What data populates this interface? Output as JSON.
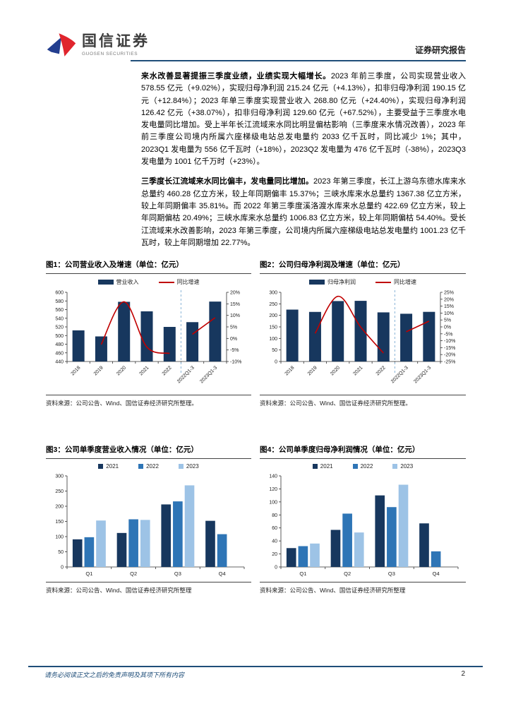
{
  "header": {
    "logo_cn": "国信证券",
    "logo_en": "GUOSEN SECURITIES",
    "report_type": "证券研究报告"
  },
  "colors": {
    "accent_blue": "#1f4e79",
    "logo_blue": "#233e8f",
    "logo_red": "#e0252d",
    "bar_navy": "#17375e",
    "bar_blue": "#2e75b6",
    "bar_light": "#9dc3e6",
    "line_red": "#c00000",
    "separator_blue": "#8ab4d8"
  },
  "body": {
    "para1_lead": "来水改善显著提振三季度业绩，业绩实现大幅增长。",
    "para1_rest": "2023 年前三季度，公司实现营业收入 578.55 亿元（+9.02%），实现归母净利润 215.24 亿元（+4.13%），扣非归母净利润 190.15 亿元（+12.84%）；2023 年单三季度实现营业收入 268.80 亿元（+24.40%），实现归母净利润 126.42 亿元（+38.07%），扣非归母净利润 129.60 亿元（+67.52%），主要受益于三季度水电发电量同比增加。受上半年长江流域来水同比明显偏枯影响（三季度来水情况改善），2023 年前三季度公司境内所属六座梯级电站总发电量约 2033 亿千瓦时，同比减少 1%；其中，2023Q1 发电量为 556 亿千瓦时（+18%），2023Q2 发电量为 476 亿千瓦时（-38%），2023Q3 发电量为 1001 亿千万时（+23%）。",
    "para2_lead": "三季度长江流域来水同比偏丰，发电量同比增加。",
    "para2_rest": "2023 年第三季度，长江上游乌东德水库来水总量约 460.28 亿立方米，较上年同期偏丰 15.37%；三峡水库来水总量约 1367.38 亿立方米，较上年同期偏丰 35.81%。而 2022 年第三季度溪洛渡水库来水总量约 422.69 亿立方米，较上年同期偏枯 20.49%；三峡水库来水总量约 1006.83 亿立方米，较上年同期偏枯 54.40%。受长江流域来水改善影响，2023 年第三季度，公司境内所属六座梯级电站总发电量约 1001.23 亿千瓦时，较上年同期增加 22.77%。"
  },
  "chart_data": [
    {
      "figure_label": "图1：公司营业收入及增速（单位：亿元）",
      "type": "bar",
      "combo": true,
      "categories": [
        "2018",
        "2019",
        "2020",
        "2021",
        "2022",
        "2022Q1-3",
        "2023Q1-3"
      ],
      "bar_series": {
        "name": "营业收入",
        "color": "#17375e",
        "values": [
          512,
          498,
          578,
          556,
          520,
          531,
          578.55
        ]
      },
      "line_series": {
        "name": "同比增速",
        "color": "#c00000",
        "axis": "right",
        "segments": [
          {
            "x": [
              1,
              2,
              3,
              4
            ],
            "y": [
              -2.6,
              15.9,
              -3.7,
              -6.5
            ]
          },
          {
            "x": [
              5,
              6
            ],
            "y": [
              1.8,
              9.02
            ]
          }
        ]
      },
      "y_left": {
        "min": 440,
        "max": 600,
        "step": 20
      },
      "y_right": {
        "min": -10,
        "max": 20,
        "step": 5,
        "suffix": "%"
      },
      "separator_after": 4,
      "rotate_x": true,
      "legend_position": "top",
      "grid": false,
      "source": "资料来源：公司公告、Wind、国信证券经济研究所整理。"
    },
    {
      "figure_label": "图2：公司归母净利润及增速（单位：亿元）",
      "type": "bar",
      "combo": true,
      "categories": [
        "2018",
        "2019",
        "2020",
        "2021",
        "2022",
        "2022Q1-3",
        "2023Q1-3"
      ],
      "bar_series": {
        "name": "归母净利润",
        "color": "#17375e",
        "values": [
          225,
          215,
          262,
          263,
          213,
          207,
          215.24
        ]
      },
      "line_series": {
        "name": "同比增速",
        "color": "#c00000",
        "axis": "right",
        "segments": [
          {
            "x": [
              1,
              2,
              3,
              4
            ],
            "y": [
              -4.7,
              22.1,
              -0.1,
              -18.9
            ]
          },
          {
            "x": [
              5,
              6
            ],
            "y": [
              -3.5,
              4.13
            ]
          }
        ]
      },
      "y_left": {
        "min": 0,
        "max": 300,
        "step": 50
      },
      "y_right": {
        "min": -25,
        "max": 25,
        "step": 5,
        "suffix": "%"
      },
      "separator_after": 4,
      "rotate_x": true,
      "legend_position": "top",
      "grid": false,
      "source": "资料来源：公司公告、Wind、国信证券经济研究所整理。"
    },
    {
      "figure_label": "图3：公司单季度营业收入情况（单位：亿元）",
      "type": "bar",
      "grouped": true,
      "categories": [
        "Q1",
        "Q2",
        "Q3",
        "Q4"
      ],
      "series": [
        {
          "name": "2021",
          "color": "#17375e",
          "values": [
            91,
            112,
            206,
            152
          ]
        },
        {
          "name": "2022",
          "color": "#2e75b6",
          "values": [
            98,
            157,
            216,
            108
          ]
        },
        {
          "name": "2023",
          "color": "#9dc3e6",
          "values": [
            153,
            155,
            268.8,
            null
          ]
        }
      ],
      "y_left": {
        "min": 0,
        "max": 300,
        "step": 50
      },
      "legend_position": "top",
      "grid": false,
      "source": "资料来源：公司公告、Wind、国信证券经济研究所整理"
    },
    {
      "figure_label": "图4：公司单季度归母净利润情况（单位：亿元）",
      "type": "bar",
      "grouped": true,
      "categories": [
        "Q1",
        "Q2",
        "Q3",
        "Q4"
      ],
      "series": [
        {
          "name": "2021",
          "color": "#17375e",
          "values": [
            29,
            57,
            110,
            67
          ]
        },
        {
          "name": "2022",
          "color": "#2e75b6",
          "values": [
            32,
            82,
            92,
            24
          ]
        },
        {
          "name": "2023",
          "color": "#9dc3e6",
          "values": [
            36,
            53,
            126.42,
            null
          ]
        }
      ],
      "y_left": {
        "min": 0,
        "max": 140,
        "step": 20
      },
      "legend_position": "top",
      "grid": false,
      "source": "资料来源：公司公告、Wind、国信证券经济研究所整理"
    }
  ],
  "footer": {
    "disclaimer": "请务必阅读正文之后的免责声明及其项下所有内容",
    "page_number": "2"
  }
}
